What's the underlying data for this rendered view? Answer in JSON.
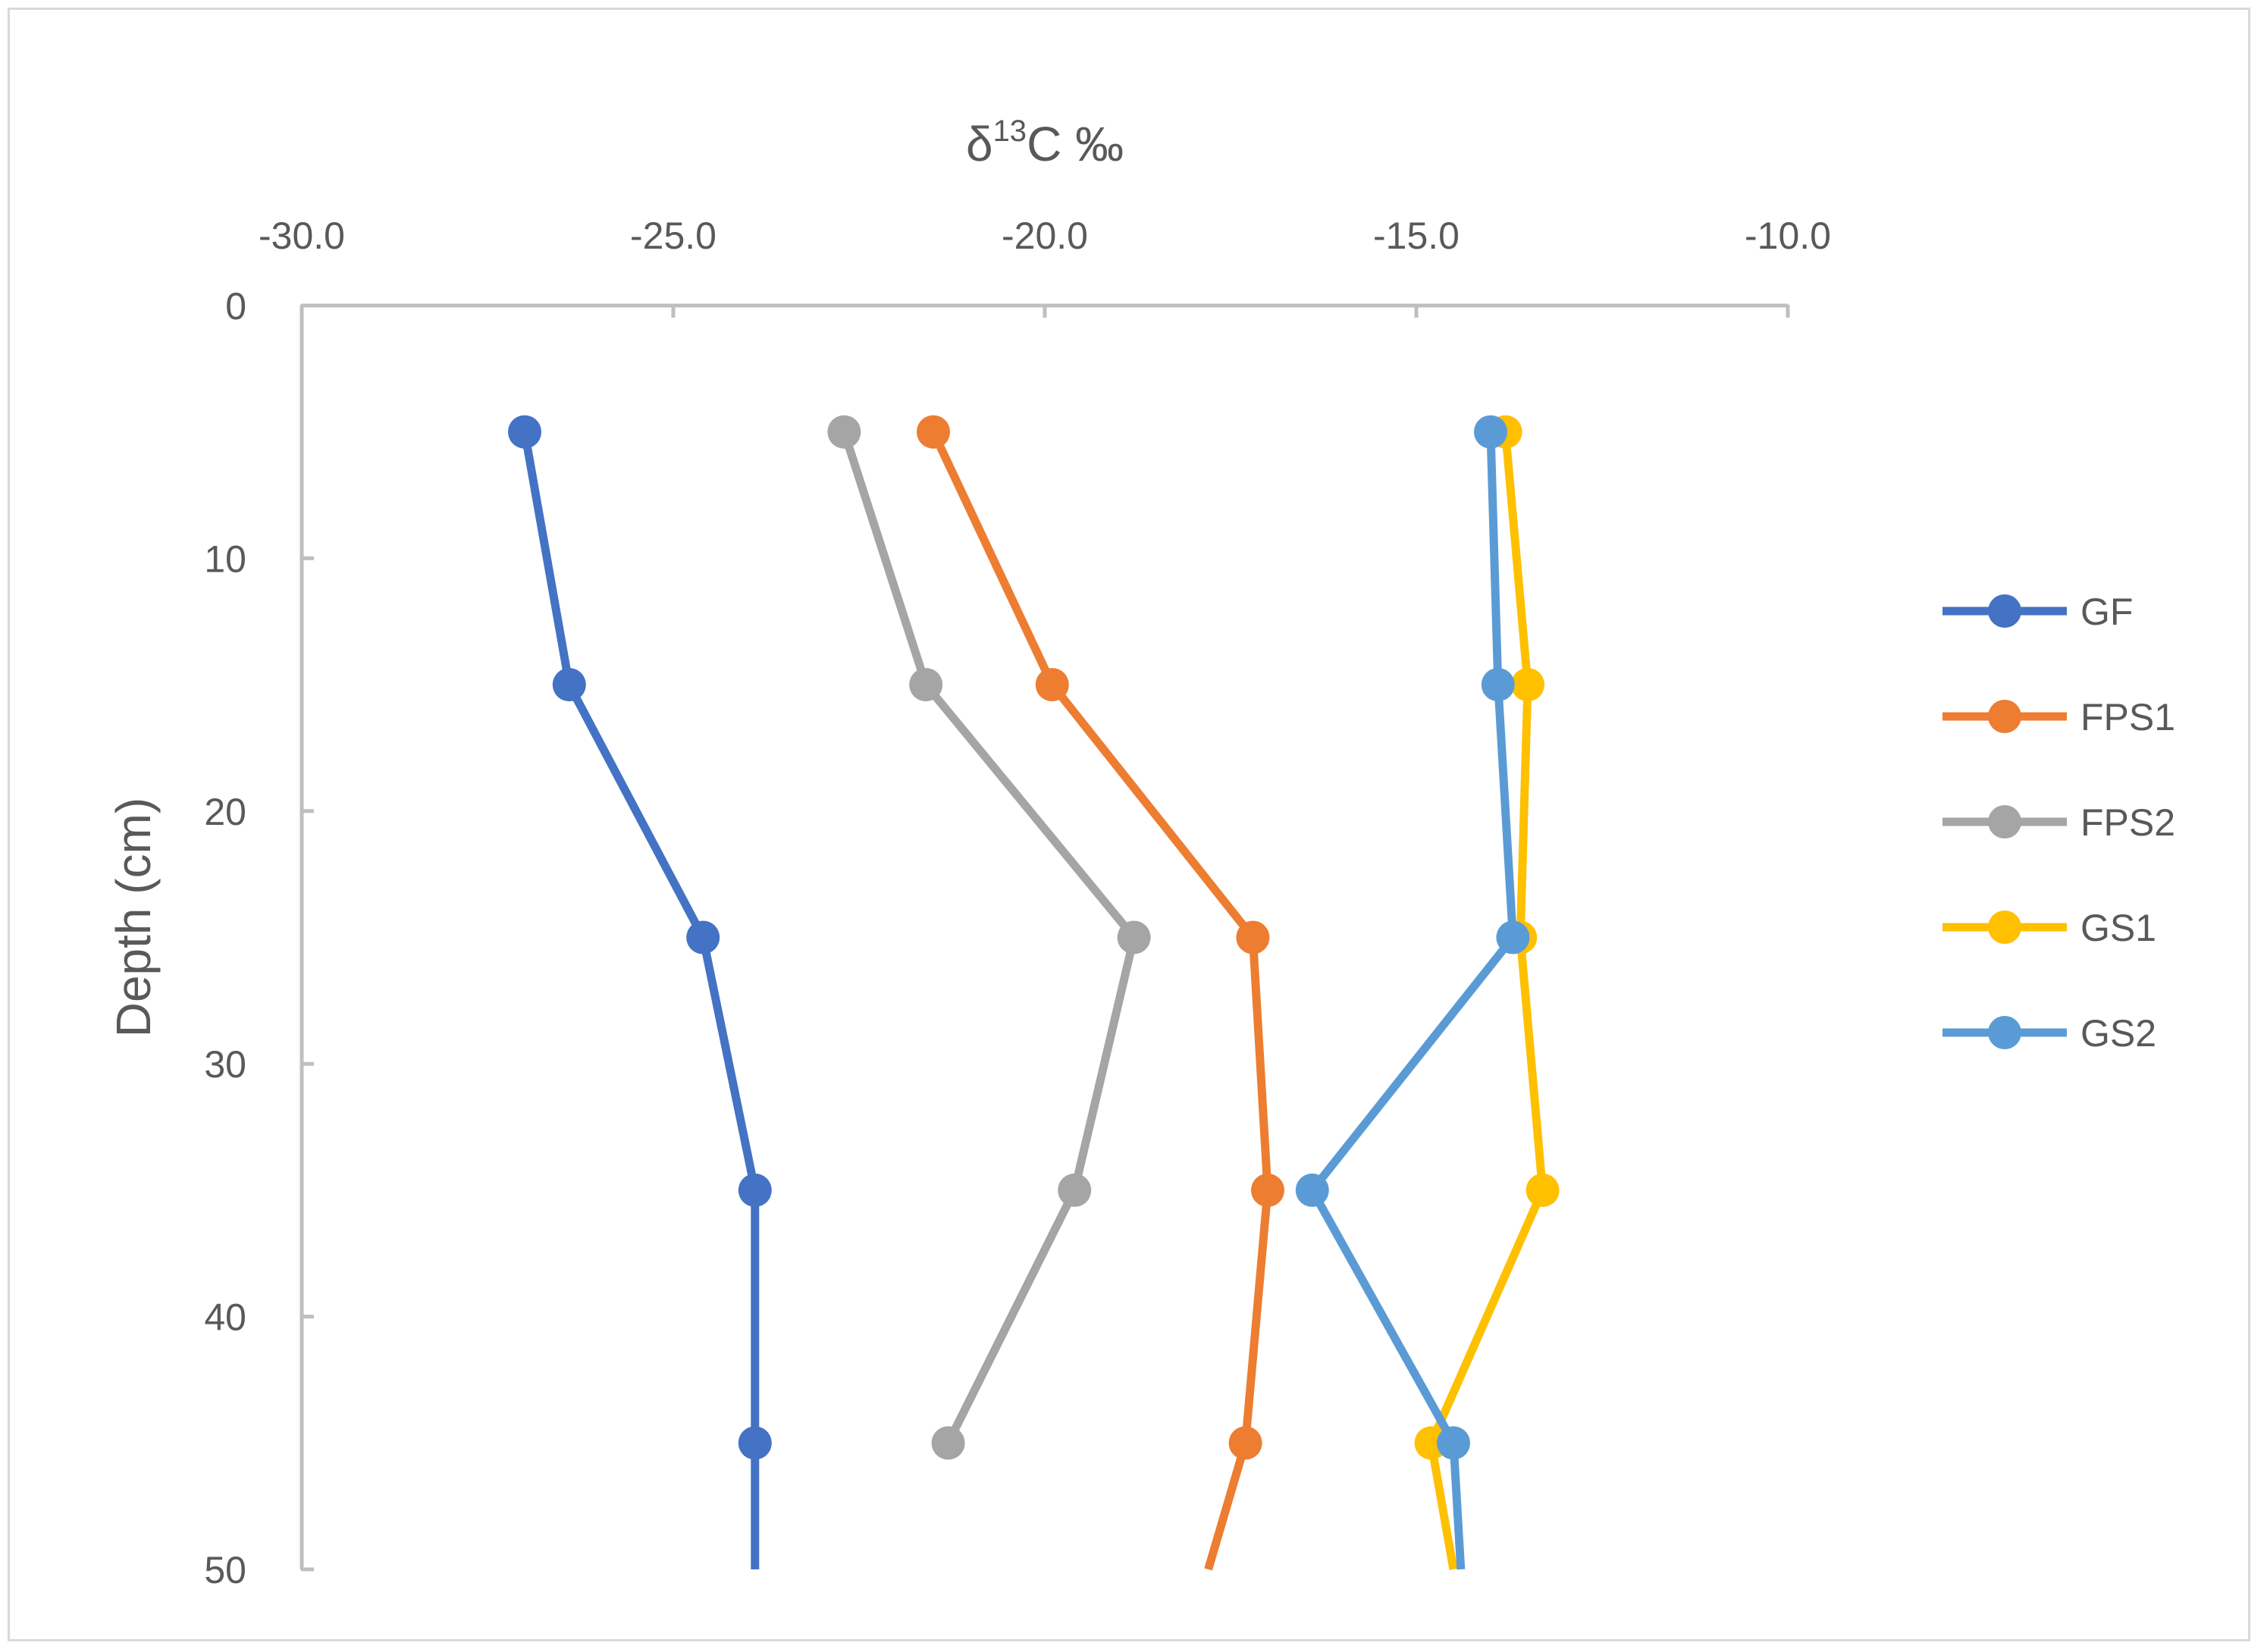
{
  "chart_data": {
    "type": "line",
    "title": "",
    "xlabel": "δ13C ‰",
    "xlabel_parts": {
      "prefix": "δ",
      "sup": "13",
      "suffix": "C ‰"
    },
    "ylabel": "Depth (cm)",
    "x_axis_position": "top",
    "y_axis_inverted": true,
    "xlim": [
      -30,
      -10
    ],
    "ylim": [
      0,
      50
    ],
    "x_ticks": [
      -30,
      -25,
      -20,
      -15,
      -10
    ],
    "x_tick_labels": [
      "-30.0",
      "-25.0",
      "-20.0",
      "-15.0",
      "-10.0"
    ],
    "y_ticks": [
      0,
      10,
      20,
      30,
      40,
      50
    ],
    "y_tick_labels": [
      "0",
      "10",
      "20",
      "30",
      "40",
      "50"
    ],
    "grid": false,
    "legend_position": "right",
    "series": [
      {
        "name": "GF",
        "color": "#4472C4",
        "points": [
          [
            -27.0,
            5
          ],
          [
            -26.4,
            15
          ],
          [
            -24.6,
            25
          ],
          [
            -23.9,
            35
          ],
          [
            -23.9,
            45
          ]
        ],
        "tail": [
          -23.9,
          50
        ]
      },
      {
        "name": "FPS1",
        "color": "#ED7D31",
        "points": [
          [
            -21.5,
            5
          ],
          [
            -19.9,
            15
          ],
          [
            -17.2,
            25
          ],
          [
            -17.0,
            35
          ],
          [
            -17.3,
            45
          ]
        ],
        "tail": [
          -17.8,
          50
        ]
      },
      {
        "name": "FPS2",
        "color": "#A5A5A5",
        "points": [
          [
            -22.7,
            5
          ],
          [
            -21.6,
            15
          ],
          [
            -18.8,
            25
          ],
          [
            -19.6,
            35
          ],
          [
            -21.3,
            45
          ]
        ],
        "tail": null
      },
      {
        "name": "GS1",
        "color": "#FFC000",
        "points": [
          [
            -13.8,
            5
          ],
          [
            -13.5,
            15
          ],
          [
            -13.6,
            25
          ],
          [
            -13.3,
            35
          ],
          [
            -14.8,
            45
          ]
        ],
        "tail": [
          -14.5,
          50
        ]
      },
      {
        "name": "GS2",
        "color": "#5B9BD5",
        "points": [
          [
            -14.0,
            5
          ],
          [
            -13.9,
            15
          ],
          [
            -13.7,
            25
          ],
          [
            -16.4,
            35
          ],
          [
            -14.5,
            45
          ]
        ],
        "tail": [
          -14.4,
          50
        ]
      }
    ]
  }
}
